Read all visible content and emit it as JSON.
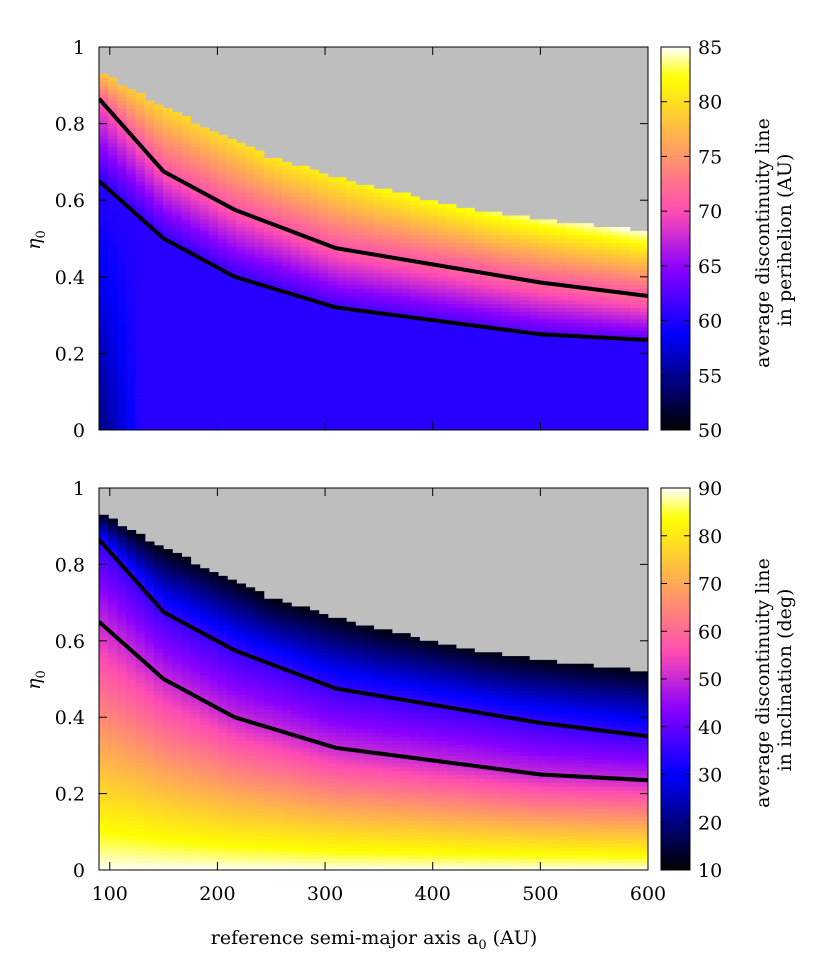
{
  "chart_data": [
    {
      "type": "heatmap",
      "panel": "top",
      "ylabel": "η",
      "ylabel_sub": "0",
      "xlabel": "",
      "xlim": [
        90,
        600
      ],
      "ylim": [
        0,
        1
      ],
      "x_ticks": [
        "100",
        "200",
        "300",
        "400",
        "500",
        "600"
      ],
      "x_ticks_shown": false,
      "y_ticks": [
        "0",
        "0.2",
        "0.4",
        "0.6",
        "0.8",
        "1"
      ],
      "colorbar": {
        "label_line1": "average discontinuity line",
        "label_line2": "in perihelion (AU)",
        "range": [
          50,
          85
        ],
        "ticks": [
          "50",
          "55",
          "60",
          "65",
          "70",
          "75",
          "80",
          "85"
        ],
        "palette": "gnuplot rgbformulae 30,31,32 (black-purple-red-yellow)"
      },
      "boundary_eta_max": {
        "x": [
          90,
          150,
          200,
          250,
          300,
          350,
          400,
          450,
          500,
          550,
          600
        ],
        "y": [
          0.94,
          0.84,
          0.78,
          0.71,
          0.67,
          0.63,
          0.6,
          0.57,
          0.55,
          0.535,
          0.52
        ]
      },
      "lines": [
        {
          "x": [
            90,
            150,
            216,
            310,
            500,
            600
          ],
          "y": [
            0.865,
            0.675,
            0.575,
            0.475,
            0.385,
            0.35
          ]
        },
        {
          "x": [
            90,
            150,
            216,
            310,
            500,
            600
          ],
          "y": [
            0.65,
            0.5,
            0.4,
            0.32,
            0.25,
            0.235
          ]
        }
      ],
      "no_data_color": "#bebebe"
    },
    {
      "type": "heatmap",
      "panel": "bottom",
      "ylabel": "η",
      "ylabel_sub": "0",
      "xlabel": "reference semi-major axis a",
      "xlabel_sub": "0",
      "xlabel_unit": "(AU)",
      "xlim": [
        90,
        600
      ],
      "ylim": [
        0,
        1
      ],
      "x_ticks": [
        "100",
        "200",
        "300",
        "400",
        "500",
        "600"
      ],
      "y_ticks": [
        "0",
        "0.2",
        "0.4",
        "0.6",
        "0.8",
        "1"
      ],
      "colorbar": {
        "label_line1": "average discontinuity line",
        "label_line2": "in inclination (deg)",
        "range": [
          10,
          90
        ],
        "ticks": [
          "10",
          "20",
          "30",
          "40",
          "50",
          "60",
          "70",
          "80",
          "90"
        ],
        "palette": "gnuplot rgbformulae 30,31,32 (black-purple-red-yellow)"
      },
      "boundary_eta_max": {
        "x": [
          90,
          150,
          200,
          250,
          300,
          350,
          400,
          450,
          500,
          550,
          600
        ],
        "y": [
          0.94,
          0.84,
          0.78,
          0.71,
          0.67,
          0.63,
          0.6,
          0.57,
          0.55,
          0.535,
          0.52
        ]
      },
      "lines": [
        {
          "x": [
            90,
            150,
            216,
            310,
            500,
            600
          ],
          "y": [
            0.865,
            0.675,
            0.575,
            0.475,
            0.385,
            0.35
          ]
        },
        {
          "x": [
            90,
            150,
            216,
            310,
            500,
            600
          ],
          "y": [
            0.65,
            0.5,
            0.4,
            0.32,
            0.25,
            0.235
          ]
        }
      ],
      "no_data_color": "#bebebe"
    }
  ]
}
